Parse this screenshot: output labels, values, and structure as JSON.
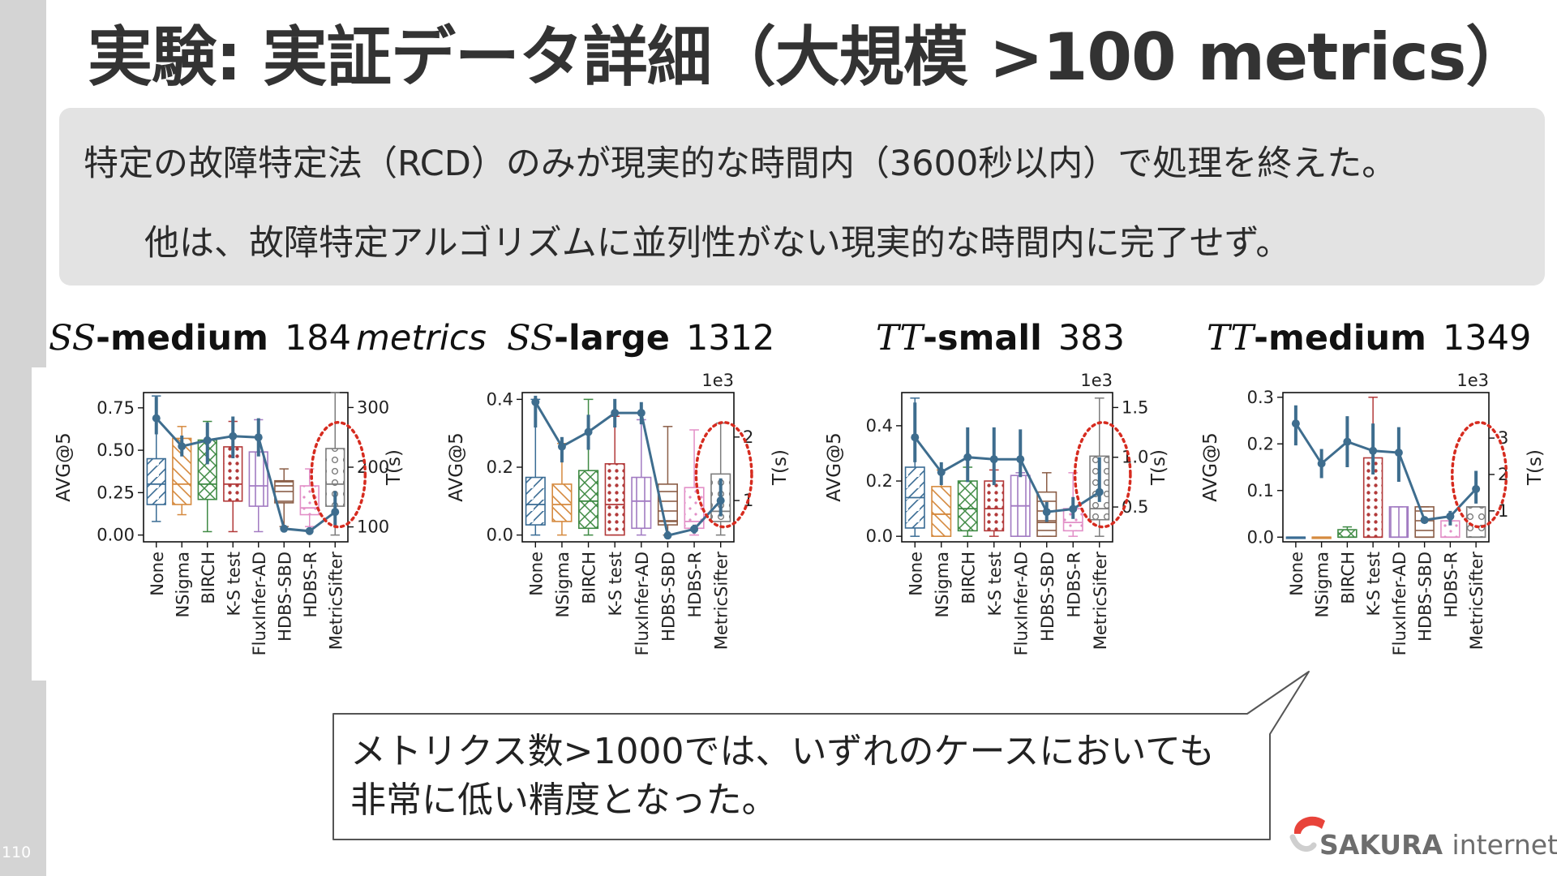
{
  "slide": {
    "title": "実験: 実証データ詳細（大規模 >100 metrics）",
    "page_number": "110",
    "summary_line1": "特定の故障特定法（RCD）のみが現実的な時間内（3600秒以内）で処理を終えた。",
    "summary_line2": "他は、故障特定アルゴリズムに並列性がない現実的な時間内に完了せず。",
    "callout_line1": "メトリクス数>1000では、いずれのケースにおいても",
    "callout_line2": "非常に低い精度となった。",
    "logo_word1": "SAKURA",
    "logo_word2": "internet",
    "highlight_color": "#d62b1f"
  },
  "chart_data": [
    {
      "type": "box",
      "title_prefix": "SS",
      "title_suffix": "-medium",
      "metric_count": "184",
      "metric_unit": "metrics",
      "categories": [
        "None",
        "NSigma",
        "BIRCH",
        "K-S test",
        "FluxInfer-AD",
        "HDBS-SBD",
        "HDBS-R",
        "MetricSifter"
      ],
      "ylabel": "AVG@5",
      "y2label": "T(s)",
      "y2_multiplier": "",
      "ylim": [
        -0.04,
        0.84
      ],
      "yticks": [
        0.0,
        0.25,
        0.5,
        0.75
      ],
      "ytick_labels": [
        "0.00",
        "0.25",
        "0.50",
        "0.75"
      ],
      "y2lim": [
        75,
        325
      ],
      "y2ticks": [
        100,
        200,
        300
      ],
      "y2tick_labels": [
        "100",
        "200",
        "300"
      ],
      "boxes": [
        {
          "low": 0.08,
          "q1": 0.18,
          "med": 0.3,
          "q3": 0.45,
          "high": 0.82
        },
        {
          "low": 0.12,
          "q1": 0.18,
          "med": 0.3,
          "q3": 0.57,
          "high": 0.64
        },
        {
          "low": 0.02,
          "q1": 0.21,
          "med": 0.3,
          "q3": 0.56,
          "high": 0.67
        },
        {
          "low": 0.02,
          "q1": 0.2,
          "med": 0.3,
          "q3": 0.52,
          "high": 0.67
        },
        {
          "low": 0.02,
          "q1": 0.17,
          "med": 0.29,
          "q3": 0.49,
          "high": 0.68
        },
        {
          "low": 0.05,
          "q1": 0.19,
          "med": 0.29,
          "q3": 0.32,
          "high": 0.39
        },
        {
          "low": 0.05,
          "q1": 0.12,
          "med": 0.16,
          "q3": 0.29,
          "high": 0.39
        },
        {
          "low": 0.0,
          "q1": 0.17,
          "med": 0.3,
          "q3": 0.51,
          "high": 0.84
        }
      ],
      "time": {
        "mean": [
          282,
          235,
          245,
          252,
          250,
          97,
          93,
          125
        ],
        "low": [
          255,
          218,
          205,
          215,
          218,
          92,
          88,
          100
        ],
        "high": [
          318,
          253,
          275,
          285,
          282,
          102,
          98,
          160
        ]
      },
      "highlight_index": 7
    },
    {
      "type": "box",
      "title_prefix": "SS",
      "title_suffix": "-large",
      "metric_count": "1312",
      "metric_unit": "",
      "categories": [
        "None",
        "NSigma",
        "BIRCH",
        "K-S test",
        "FluxInfer-AD",
        "HDBS-SBD",
        "HDBS-R",
        "MetricSifter"
      ],
      "ylabel": "AVG@5",
      "y2label": "T(s)",
      "y2_multiplier": "1e3",
      "ylim": [
        -0.02,
        0.42
      ],
      "yticks": [
        0.0,
        0.2,
        0.4
      ],
      "ytick_labels": [
        "0.0",
        "0.2",
        "0.4"
      ],
      "y2lim": [
        0.35,
        2.7
      ],
      "y2ticks": [
        1,
        2
      ],
      "y2tick_labels": [
        "1",
        "2"
      ],
      "boxes": [
        {
          "low": 0.0,
          "q1": 0.03,
          "med": 0.09,
          "q3": 0.17,
          "high": 0.4
        },
        {
          "low": 0.0,
          "q1": 0.04,
          "med": 0.09,
          "q3": 0.15,
          "high": 0.27
        },
        {
          "low": 0.0,
          "q1": 0.02,
          "med": 0.1,
          "q3": 0.19,
          "high": 0.4
        },
        {
          "low": 0.0,
          "q1": 0.0,
          "med": 0.09,
          "q3": 0.21,
          "high": 0.35
        },
        {
          "low": 0.0,
          "q1": 0.02,
          "med": 0.1,
          "q3": 0.17,
          "high": 0.34
        },
        {
          "low": 0.0,
          "q1": 0.03,
          "med": 0.04,
          "q3": 0.15,
          "high": 0.32
        },
        {
          "low": 0.0,
          "q1": 0.02,
          "med": 0.04,
          "q3": 0.14,
          "high": 0.31
        },
        {
          "low": 0.0,
          "q1": 0.04,
          "med": 0.07,
          "q3": 0.18,
          "high": 0.33
        }
      ],
      "time": {
        "mean": [
          2.55,
          1.85,
          2.08,
          2.38,
          2.38,
          0.45,
          0.55,
          1.0
        ],
        "low": [
          2.15,
          1.6,
          1.8,
          2.15,
          2.2,
          0.4,
          0.48,
          0.75
        ],
        "high": [
          2.65,
          2.0,
          2.35,
          2.6,
          2.55,
          0.52,
          0.62,
          1.35
        ]
      },
      "highlight_index": 7
    },
    {
      "type": "box",
      "title_prefix": "TT",
      "title_suffix": "-small",
      "metric_count": "383",
      "metric_unit": "",
      "categories": [
        "None",
        "NSigma",
        "BIRCH",
        "K-S test",
        "FluxInfer-AD",
        "HDBS-SBD",
        "HDBS-R",
        "MetricSifter"
      ],
      "ylabel": "AVG@5",
      "y2label": "T(s)",
      "y2_multiplier": "1e3",
      "ylim": [
        -0.02,
        0.52
      ],
      "yticks": [
        0.0,
        0.2,
        0.4
      ],
      "ytick_labels": [
        "0.0",
        "0.2",
        "0.4"
      ],
      "y2lim": [
        0.15,
        1.65
      ],
      "y2ticks": [
        0.5,
        1.0,
        1.5
      ],
      "y2tick_labels": [
        "0.5",
        "1.0",
        "1.5"
      ],
      "boxes": [
        {
          "low": 0.0,
          "q1": 0.03,
          "med": 0.14,
          "q3": 0.25,
          "high": 0.5
        },
        {
          "low": 0.0,
          "q1": 0.0,
          "med": 0.08,
          "q3": 0.18,
          "high": 0.24
        },
        {
          "low": 0.0,
          "q1": 0.02,
          "med": 0.1,
          "q3": 0.2,
          "high": 0.25
        },
        {
          "low": 0.0,
          "q1": 0.02,
          "med": 0.1,
          "q3": 0.2,
          "high": 0.24
        },
        {
          "low": 0.0,
          "q1": 0.0,
          "med": 0.11,
          "q3": 0.22,
          "high": 0.23
        },
        {
          "low": 0.0,
          "q1": 0.0,
          "med": 0.05,
          "q3": 0.16,
          "high": 0.23
        },
        {
          "low": 0.0,
          "q1": 0.02,
          "med": 0.05,
          "q3": 0.1,
          "high": 0.23
        },
        {
          "low": 0.0,
          "q1": 0.06,
          "med": 0.1,
          "q3": 0.29,
          "high": 0.5
        }
      ],
      "time": {
        "mean": [
          1.2,
          0.85,
          1.0,
          0.98,
          0.98,
          0.45,
          0.48,
          0.65
        ],
        "low": [
          0.95,
          0.72,
          0.75,
          0.72,
          0.8,
          0.35,
          0.38,
          0.55
        ],
        "high": [
          1.55,
          0.95,
          1.3,
          1.3,
          1.28,
          0.55,
          0.6,
          1.0
        ]
      },
      "highlight_index": 7
    },
    {
      "type": "box",
      "title_prefix": "TT",
      "title_suffix": "-medium",
      "metric_count": "1349",
      "metric_unit": "",
      "categories": [
        "None",
        "NSigma",
        "BIRCH",
        "K-S test",
        "FluxInfer-AD",
        "HDBS-SBD",
        "HDBS-R",
        "MetricSifter"
      ],
      "ylabel": "AVG@5",
      "y2label": "T(s)",
      "y2_multiplier": "1e3",
      "ylim": [
        -0.01,
        0.31
      ],
      "yticks": [
        0.0,
        0.1,
        0.2,
        0.3
      ],
      "ytick_labels": [
        "0.0",
        "0.1",
        "0.2",
        "0.3"
      ],
      "y2lim": [
        0.15,
        4.25
      ],
      "y2ticks": [
        1,
        2,
        3
      ],
      "y2tick_labels": [
        "1",
        "2",
        "3"
      ],
      "boxes": [
        {
          "low": 0.0,
          "q1": 0.0,
          "med": 0.0,
          "q3": 0.0,
          "high": 0.0
        },
        {
          "low": 0.0,
          "q1": 0.0,
          "med": 0.0,
          "q3": 0.0,
          "high": 0.0
        },
        {
          "low": 0.0,
          "q1": 0.0,
          "med": 0.0,
          "q3": 0.016,
          "high": 0.022
        },
        {
          "low": 0.0,
          "q1": 0.0,
          "med": 0.0,
          "q3": 0.17,
          "high": 0.3
        },
        {
          "low": 0.0,
          "q1": 0.0,
          "med": 0.0,
          "q3": 0.065,
          "high": 0.065
        },
        {
          "low": 0.0,
          "q1": 0.0,
          "med": 0.0,
          "q3": 0.065,
          "high": 0.065
        },
        {
          "low": 0.0,
          "q1": 0.0,
          "med": 0.0,
          "q3": 0.035,
          "high": 0.035
        },
        {
          "low": 0.0,
          "q1": 0.0,
          "med": 0.0,
          "q3": 0.065,
          "high": 0.065
        }
      ],
      "time": {
        "mean": [
          3.4,
          2.3,
          2.9,
          2.65,
          2.6,
          0.75,
          0.85,
          1.6
        ],
        "low": [
          2.8,
          1.9,
          2.2,
          2.0,
          1.8,
          0.65,
          0.6,
          1.2
        ],
        "high": [
          3.9,
          2.7,
          3.6,
          3.4,
          3.3,
          0.85,
          1.0,
          2.1
        ]
      },
      "highlight_index": 7
    }
  ]
}
